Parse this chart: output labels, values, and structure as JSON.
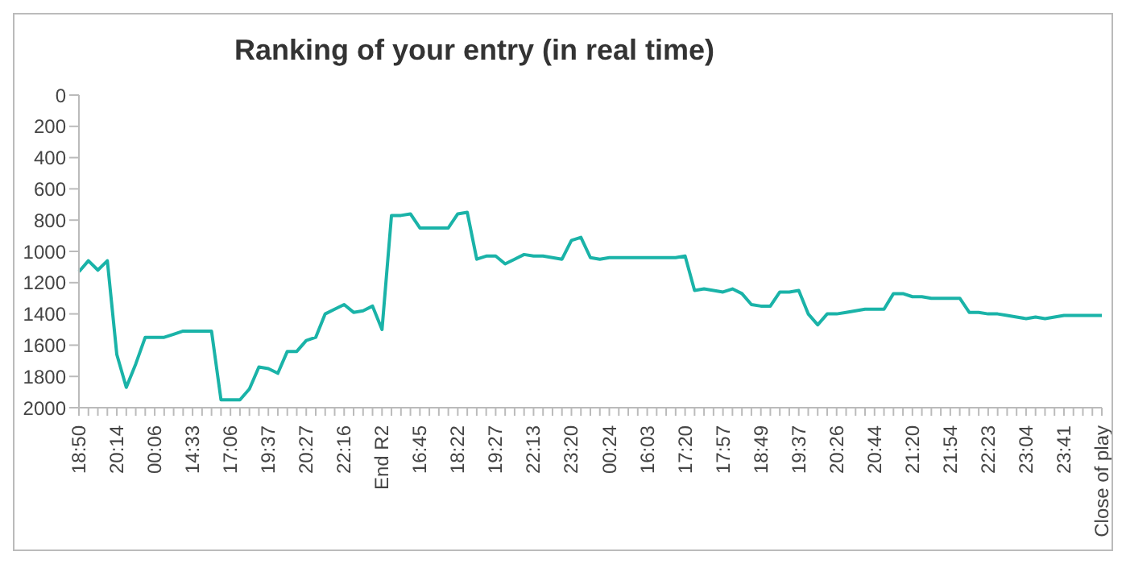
{
  "chart_data": {
    "type": "line",
    "title": "Ranking of your entry (in real time)",
    "categories": [
      "18:50",
      null,
      null,
      null,
      "20:14",
      null,
      null,
      null,
      "00:06",
      null,
      null,
      null,
      "14:33",
      null,
      null,
      null,
      "17:06",
      null,
      null,
      null,
      "19:37",
      null,
      null,
      null,
      "20:27",
      null,
      null,
      null,
      "22:16",
      null,
      null,
      null,
      "End R2",
      null,
      null,
      null,
      "16:45",
      null,
      null,
      null,
      "18:22",
      null,
      null,
      null,
      "19:27",
      null,
      null,
      null,
      "22:13",
      null,
      null,
      null,
      "23:20",
      null,
      null,
      null,
      "00:24",
      null,
      null,
      null,
      "16:03",
      null,
      null,
      null,
      "17:20",
      null,
      null,
      null,
      "17:57",
      null,
      null,
      null,
      "18:49",
      null,
      null,
      null,
      "19:37",
      null,
      null,
      null,
      "20:26",
      null,
      null,
      null,
      "20:44",
      null,
      null,
      null,
      "21:20",
      null,
      null,
      null,
      "21:54",
      null,
      null,
      null,
      "22:23",
      null,
      null,
      null,
      "23:04",
      null,
      null,
      null,
      "23:41",
      null,
      null,
      null,
      "Close of play"
    ],
    "series": [
      {
        "color": "#1ab3a8",
        "values": [
          1130,
          1060,
          1120,
          1060,
          1660,
          1870,
          1720,
          1550,
          1550,
          1550,
          1530,
          1510,
          1510,
          1510,
          1510,
          1950,
          1950,
          1950,
          1880,
          1740,
          1750,
          1780,
          1640,
          1640,
          1570,
          1550,
          1400,
          1370,
          1340,
          1390,
          1380,
          1350,
          1500,
          770,
          770,
          760,
          850,
          850,
          850,
          850,
          760,
          750,
          1050,
          1030,
          1030,
          1080,
          1050,
          1020,
          1030,
          1030,
          1040,
          1050,
          930,
          910,
          1040,
          1050,
          1040,
          1040,
          1040,
          1040,
          1040,
          1040,
          1040,
          1040,
          1030,
          1250,
          1240,
          1250,
          1260,
          1240,
          1270,
          1340,
          1350,
          1350,
          1260,
          1260,
          1250,
          1400,
          1470,
          1400,
          1400,
          1390,
          1380,
          1370,
          1370,
          1370,
          1270,
          1270,
          1290,
          1290,
          1300,
          1300,
          1300,
          1300,
          1390,
          1390,
          1400,
          1400,
          1410,
          1420,
          1430,
          1420,
          1430,
          1420,
          1410,
          1410,
          1410,
          1410,
          1410
        ]
      }
    ],
    "ylim": [
      2000,
      0
    ],
    "yticks": [
      0,
      200,
      400,
      600,
      800,
      1000,
      1200,
      1400,
      1600,
      1800,
      2000
    ],
    "grid": false,
    "legend": false,
    "marker": "none",
    "line_style": "solid"
  }
}
